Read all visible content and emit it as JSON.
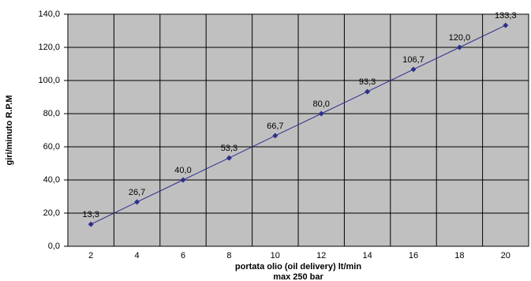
{
  "chart_data": {
    "type": "line",
    "x_label": "portata olio  (oil delivery) lt/min",
    "x_label_2": "max 250 bar",
    "y_label": "giri/minuto R.P.M",
    "categories": [
      "2",
      "4",
      "6",
      "8",
      "10",
      "12",
      "14",
      "16",
      "18",
      "20"
    ],
    "series": [
      {
        "name": "R.P.M",
        "color": "#2e2e8c",
        "values": [
          13.3,
          26.7,
          40.0,
          53.3,
          66.7,
          80.0,
          93.3,
          106.7,
          120.0,
          133.3
        ],
        "value_labels": [
          "13,3",
          "26,7",
          "40,0",
          "53,3",
          "66,7",
          "80,0",
          "93,3",
          "106,7",
          "120,0",
          "133,3"
        ]
      }
    ],
    "ylim": [
      0,
      140
    ],
    "yticks": [
      {
        "value": 0,
        "label": "0,0"
      },
      {
        "value": 20,
        "label": "20,0"
      },
      {
        "value": 40,
        "label": "40,0"
      },
      {
        "value": 60,
        "label": "60,0"
      },
      {
        "value": 80,
        "label": "80,0"
      },
      {
        "value": 100,
        "label": "100,0"
      },
      {
        "value": 120,
        "label": "120,0"
      },
      {
        "value": 140,
        "label": "140,0"
      }
    ],
    "grid": true,
    "plot_background": "#c0c0c0"
  }
}
